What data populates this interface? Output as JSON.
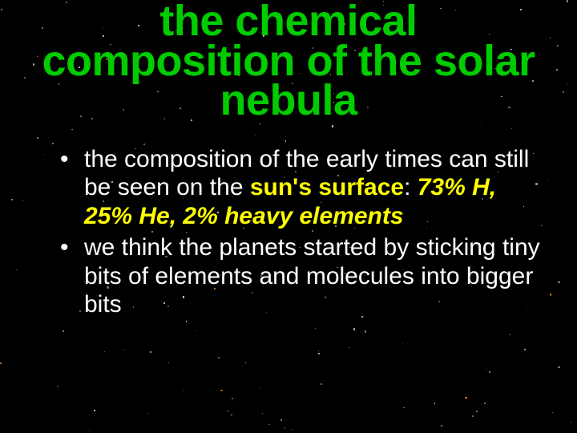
{
  "slide": {
    "title": "the chemical composition of the solar nebula",
    "title_color": "#00cc00",
    "title_fontsize": 54,
    "title_fontweight": 700,
    "bullets": [
      {
        "prefix": "the composition of the early times can still be seen on the ",
        "emph1": "sun's surface",
        "mid": ": ",
        "emph2": "73% H, 25% He, 2% heavy elements",
        "suffix": ""
      },
      {
        "prefix": "we think the planets started by sticking tiny bits of elements and molecules into bigger bits",
        "emph1": "",
        "mid": "",
        "emph2": "",
        "suffix": ""
      }
    ],
    "bullet_color": "#ffffff",
    "bullet_fontsize": 30,
    "emph_color": "#ffff00",
    "background_color": "#000000"
  },
  "stars": {
    "count": 180,
    "colors": [
      "#ffffff",
      "#ffeecc",
      "#cc9966",
      "#ff9933",
      "#ccccff"
    ],
    "min_size": 0.8,
    "max_size": 2.4,
    "seed": 42
  }
}
